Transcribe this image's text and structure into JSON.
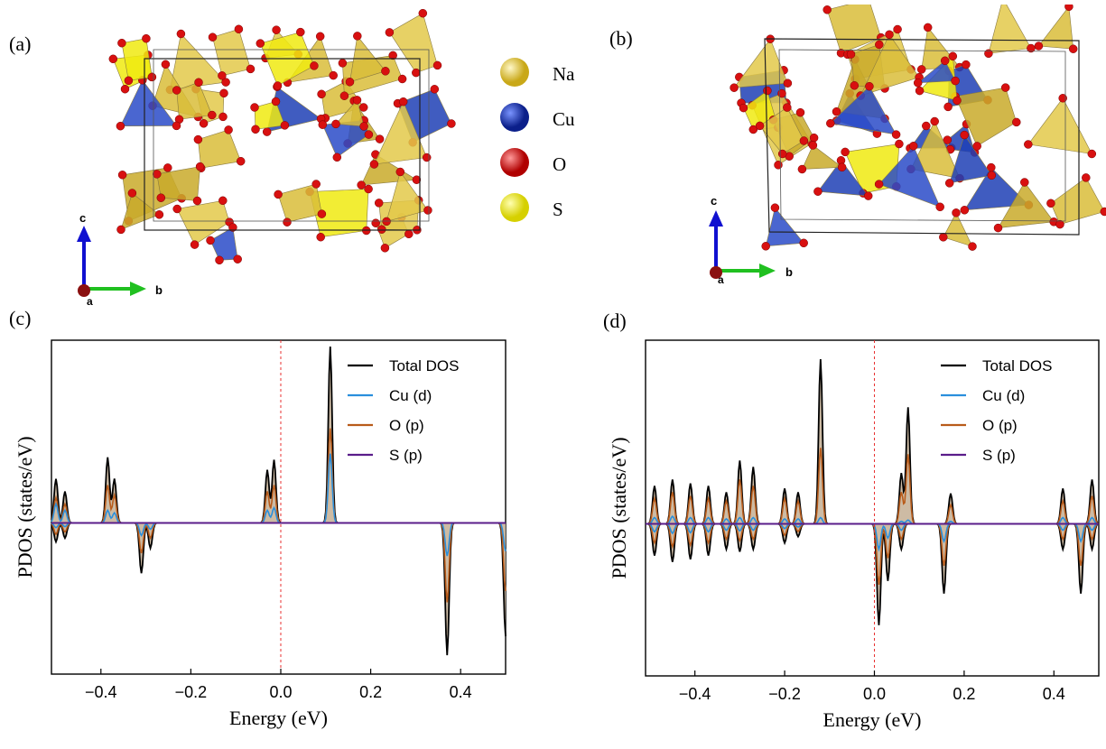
{
  "panels": {
    "a": {
      "label": "(a)"
    },
    "b": {
      "label": "(b)"
    },
    "c": {
      "label": "(c)"
    },
    "d": {
      "label": "(d)"
    }
  },
  "axis_glyphs": {
    "c": "c",
    "b": "b",
    "a": "a"
  },
  "atom_legend": [
    {
      "name": "Na",
      "color": "#f0d23a"
    },
    {
      "name": "Cu",
      "color": "#1f3fb5"
    },
    {
      "name": "O",
      "color": "#e01010"
    },
    {
      "name": "S",
      "color": "#f5f00a"
    }
  ],
  "colors": {
    "total": "#000000",
    "cu_d": "#2a8fdc",
    "o_p": "#b85b1a",
    "s_p": "#5a1d8a",
    "fermi": "#e83030",
    "fill": "#c8b49a"
  },
  "chart_data": [
    {
      "type": "line",
      "panel": "c",
      "xlabel": "Energy (eV)",
      "ylabel": "PDOS (states/eV)",
      "xlim": [
        -0.51,
        0.5
      ],
      "xticks": [
        -0.4,
        -0.2,
        0.0,
        0.2,
        0.4
      ],
      "xtick_labels": [
        "−0.4",
        "−0.2",
        "0.0",
        "0.2",
        "0.4"
      ],
      "fermi_level": 0.0,
      "legend": [
        "Total DOS",
        "Cu (d)",
        "O (p)",
        "S (p)"
      ],
      "legend_position": "top-right",
      "features": [
        {
          "e": -0.5,
          "total": 0.35,
          "cu": 0.15,
          "o": 0.2,
          "down": -0.15
        },
        {
          "e": -0.48,
          "total": 0.25,
          "cu": 0.1,
          "o": 0.15,
          "down": -0.12
        },
        {
          "e": -0.385,
          "total": 0.52,
          "cu": 0.1,
          "o": 0.3,
          "down": 0.0
        },
        {
          "e": -0.37,
          "total": 0.35,
          "cu": 0.08,
          "o": 0.22,
          "down": 0.0
        },
        {
          "e": -0.31,
          "total": 0.0,
          "cu": 0.0,
          "o": 0.0,
          "down": -0.4
        },
        {
          "e": -0.29,
          "total": 0.0,
          "cu": 0.0,
          "o": 0.0,
          "down": -0.2
        },
        {
          "e": -0.03,
          "total": 0.42,
          "cu": 0.1,
          "o": 0.25,
          "down": 0.0
        },
        {
          "e": -0.015,
          "total": 0.5,
          "cu": 0.12,
          "o": 0.3,
          "down": 0.0
        },
        {
          "e": 0.11,
          "total": 1.4,
          "cu": 0.55,
          "o": 0.75,
          "down": 0.0
        },
        {
          "e": 0.37,
          "total": 0.0,
          "cu": 0.0,
          "o": 0.0,
          "down": -1.05
        },
        {
          "e": 0.5,
          "total": 0.0,
          "cu": 0.0,
          "o": 0.0,
          "down": -0.9
        }
      ]
    },
    {
      "type": "line",
      "panel": "d",
      "xlabel": "Energy (eV)",
      "ylabel": "PDOS (states/eV)",
      "xlim": [
        -0.51,
        0.5
      ],
      "xticks": [
        -0.4,
        -0.2,
        0.0,
        0.2,
        0.4
      ],
      "xtick_labels": [
        "−0.4",
        "−0.2",
        "0.0",
        "0.2",
        "0.4"
      ],
      "fermi_level": 0.0,
      "legend": [
        "Total DOS",
        "Cu (d)",
        "O (p)",
        "S (p)"
      ],
      "legend_position": "top-right",
      "features": [
        {
          "e": -0.49,
          "total": 0.3,
          "cu": 0.05,
          "o": 0.2,
          "down": -0.25
        },
        {
          "e": -0.45,
          "total": 0.35,
          "cu": 0.06,
          "o": 0.25,
          "down": -0.3
        },
        {
          "e": -0.41,
          "total": 0.32,
          "cu": 0.05,
          "o": 0.22,
          "down": -0.28
        },
        {
          "e": -0.37,
          "total": 0.3,
          "cu": 0.05,
          "o": 0.2,
          "down": -0.25
        },
        {
          "e": -0.33,
          "total": 0.25,
          "cu": 0.04,
          "o": 0.18,
          "down": -0.2
        },
        {
          "e": -0.3,
          "total": 0.5,
          "cu": 0.05,
          "o": 0.35,
          "down": -0.22
        },
        {
          "e": -0.27,
          "total": 0.45,
          "cu": 0.05,
          "o": 0.3,
          "down": -0.2
        },
        {
          "e": -0.2,
          "total": 0.28,
          "cu": 0.04,
          "o": 0.2,
          "down": -0.15
        },
        {
          "e": -0.17,
          "total": 0.25,
          "cu": 0.04,
          "o": 0.18,
          "down": -0.1
        },
        {
          "e": -0.12,
          "total": 1.3,
          "cu": 0.05,
          "o": 0.6,
          "down": 0.0
        },
        {
          "e": 0.01,
          "total": 0.0,
          "cu": 0.0,
          "o": 0.0,
          "down": -0.8
        },
        {
          "e": 0.03,
          "total": 0.0,
          "cu": 0.0,
          "o": 0.0,
          "down": -0.45
        },
        {
          "e": 0.06,
          "total": 0.4,
          "cu": 0.02,
          "o": 0.25,
          "down": -0.2
        },
        {
          "e": 0.075,
          "total": 0.92,
          "cu": 0.03,
          "o": 0.55,
          "down": 0.0
        },
        {
          "e": 0.155,
          "total": 0.0,
          "cu": 0.0,
          "o": 0.0,
          "down": -0.55
        },
        {
          "e": 0.17,
          "total": 0.24,
          "cu": 0.02,
          "o": 0.15,
          "down": 0.0
        },
        {
          "e": 0.42,
          "total": 0.28,
          "cu": 0.05,
          "o": 0.18,
          "down": -0.2
        },
        {
          "e": 0.46,
          "total": 0.0,
          "cu": 0.0,
          "o": 0.0,
          "down": -0.55
        },
        {
          "e": 0.485,
          "total": 0.35,
          "cu": 0.05,
          "o": 0.22,
          "down": -0.2
        }
      ]
    }
  ]
}
